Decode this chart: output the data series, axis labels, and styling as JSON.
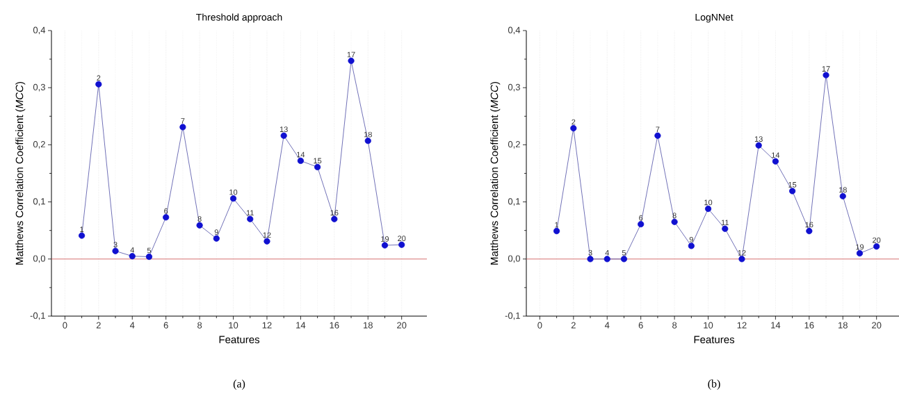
{
  "chart_data": [
    {
      "type": "line",
      "title": "Threshold approach",
      "xlabel": "Features",
      "ylabel": "Matthews Correlation Coefficient (*MCC*)",
      "color": "#1010d0",
      "marker": "circle",
      "grid": "x",
      "x": [
        1,
        2,
        3,
        4,
        5,
        6,
        7,
        8,
        9,
        10,
        11,
        12,
        13,
        14,
        15,
        16,
        17,
        18,
        19,
        20
      ],
      "values": [
        0.041,
        0.306,
        0.014,
        0.005,
        0.004,
        0.073,
        0.231,
        0.059,
        0.036,
        0.106,
        0.07,
        0.031,
        0.216,
        0.172,
        0.161,
        0.07,
        0.347,
        0.207,
        0.024,
        0.025
      ],
      "xlim": [
        -0.8,
        21.5
      ],
      "ylim": [
        -0.1,
        0.4
      ],
      "xticks": [
        0,
        2,
        4,
        6,
        8,
        10,
        12,
        14,
        16,
        18,
        20
      ],
      "yticks": [
        {
          "value": -0.1,
          "label": "-0,1"
        },
        {
          "value": 0,
          "label": "0,0"
        },
        {
          "value": 0.1,
          "label": "0,1"
        },
        {
          "value": 0.2,
          "label": "0,2"
        },
        {
          "value": 0.3,
          "label": "0,3"
        },
        {
          "value": 0.4,
          "label": "0,4"
        }
      ],
      "ref_lines": [
        {
          "axis": "y",
          "value": 0,
          "color": "#d06060"
        }
      ],
      "annotations": [
        "(a)",
        {
          "text": "1",
          "x": 1,
          "y": 0.041
        },
        {
          "text": "2",
          "x": 2,
          "y": 0.306
        },
        {
          "text": "3",
          "x": 3,
          "y": 0.014
        },
        {
          "text": "4",
          "x": 4,
          "y": 0.005
        },
        {
          "text": "5",
          "x": 5,
          "y": 0.004
        },
        {
          "text": "6",
          "x": 6,
          "y": 0.073
        },
        {
          "text": "7",
          "x": 7,
          "y": 0.231
        },
        {
          "text": "8",
          "x": 8,
          "y": 0.059
        },
        {
          "text": "9",
          "x": 9,
          "y": 0.036
        },
        {
          "text": "10",
          "x": 10,
          "y": 0.106
        },
        {
          "text": "11",
          "x": 11,
          "y": 0.07
        },
        {
          "text": "12",
          "x": 12,
          "y": 0.031
        },
        {
          "text": "13",
          "x": 13,
          "y": 0.216
        },
        {
          "text": "14",
          "x": 14,
          "y": 0.172
        },
        {
          "text": "15",
          "x": 15,
          "y": 0.161
        },
        {
          "text": "16",
          "x": 16,
          "y": 0.07
        },
        {
          "text": "17",
          "x": 17,
          "y": 0.347
        },
        {
          "text": "18",
          "x": 18,
          "y": 0.207
        },
        {
          "text": "19",
          "x": 19,
          "y": 0.024
        },
        {
          "text": "20",
          "x": 20,
          "y": 0.025
        }
      ]
    },
    {
      "type": "line",
      "title": "LogNNet",
      "xlabel": "Features",
      "ylabel": "Matthews Correlation Coefficient (*MCC*)",
      "color": "#1010d0",
      "marker": "circle",
      "grid": "x",
      "x": [
        1,
        2,
        3,
        4,
        5,
        6,
        7,
        8,
        9,
        10,
        11,
        12,
        13,
        14,
        15,
        16,
        17,
        18,
        19,
        20
      ],
      "values": [
        0.049,
        0.229,
        0,
        0,
        0,
        0.061,
        0.216,
        0.065,
        0.023,
        0.088,
        0.053,
        0,
        0.199,
        0.171,
        0.119,
        0.049,
        0.322,
        0.11,
        0.01,
        0.022
      ],
      "xlim": [
        -0.8,
        21.5
      ],
      "ylim": [
        -0.1,
        0.4
      ],
      "xticks": [
        0,
        2,
        4,
        6,
        8,
        10,
        12,
        14,
        16,
        18,
        20
      ],
      "yticks": [
        {
          "value": -0.1,
          "label": "-0,1"
        },
        {
          "value": 0,
          "label": "0,0"
        },
        {
          "value": 0.1,
          "label": "0,1"
        },
        {
          "value": 0.2,
          "label": "0,2"
        },
        {
          "value": 0.3,
          "label": "0,3"
        },
        {
          "value": 0.4,
          "label": "0,4"
        }
      ],
      "ref_lines": [
        {
          "axis": "y",
          "value": 0,
          "color": "#d06060"
        }
      ],
      "annotations": [
        "(b)",
        {
          "text": "1",
          "x": 1,
          "y": 0.049
        },
        {
          "text": "2",
          "x": 2,
          "y": 0.229
        },
        {
          "text": "3",
          "x": 3,
          "y": 0
        },
        {
          "text": "4",
          "x": 4,
          "y": 0
        },
        {
          "text": "5",
          "x": 5,
          "y": 0
        },
        {
          "text": "6",
          "x": 6,
          "y": 0.061
        },
        {
          "text": "7",
          "x": 7,
          "y": 0.216
        },
        {
          "text": "8",
          "x": 8,
          "y": 0.065
        },
        {
          "text": "9",
          "x": 9,
          "y": 0.023
        },
        {
          "text": "10",
          "x": 10,
          "y": 0.088
        },
        {
          "text": "11",
          "x": 11,
          "y": 0.053
        },
        {
          "text": "12",
          "x": 12,
          "y": 0
        },
        {
          "text": "13",
          "x": 13,
          "y": 0.199
        },
        {
          "text": "14",
          "x": 14,
          "y": 0.171
        },
        {
          "text": "15",
          "x": 15,
          "y": 0.119
        },
        {
          "text": "16",
          "x": 16,
          "y": 0.049
        },
        {
          "text": "17",
          "x": 17,
          "y": 0.322
        },
        {
          "text": "18",
          "x": 18,
          "y": 0.11
        },
        {
          "text": "19",
          "x": 19,
          "y": 0.01
        },
        {
          "text": "20",
          "x": 20,
          "y": 0.022
        }
      ]
    }
  ]
}
